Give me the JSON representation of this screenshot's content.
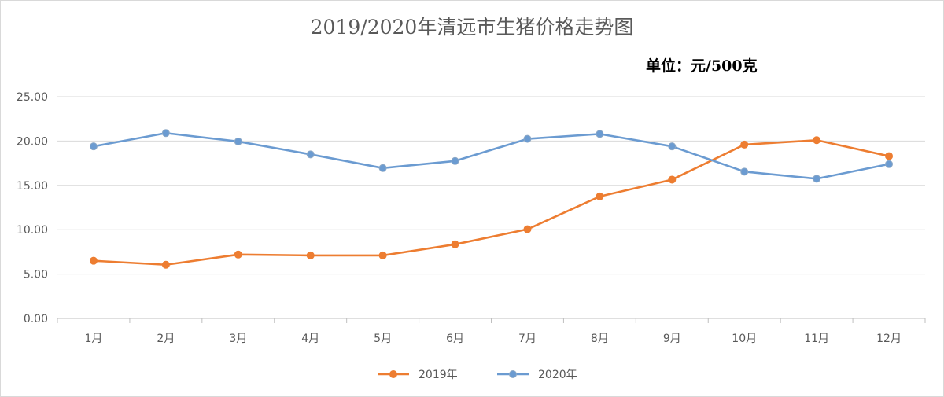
{
  "chart_data": {
    "type": "line",
    "title": "2019/2020年清远市生猪价格走势图",
    "unit_label": "单位：元/500克",
    "categories": [
      "1月",
      "2月",
      "3月",
      "4月",
      "5月",
      "6月",
      "7月",
      "8月",
      "9月",
      "10月",
      "11月",
      "12月"
    ],
    "series": [
      {
        "name": "2019年",
        "color": "#ed7d31",
        "values": [
          6.5,
          6.05,
          7.2,
          7.1,
          7.1,
          8.35,
          10.05,
          13.75,
          15.65,
          19.6,
          20.1,
          18.3
        ]
      },
      {
        "name": "2020年",
        "color": "#6b9bd1",
        "values": [
          19.4,
          20.9,
          19.95,
          18.5,
          16.95,
          17.75,
          20.25,
          20.8,
          19.4,
          16.55,
          15.75,
          17.4
        ]
      }
    ],
    "ylim": [
      0,
      25
    ],
    "yticks": [
      "0.00",
      "5.00",
      "10.00",
      "15.00",
      "20.00",
      "25.00"
    ],
    "grid": true,
    "legend_position": "bottom"
  }
}
